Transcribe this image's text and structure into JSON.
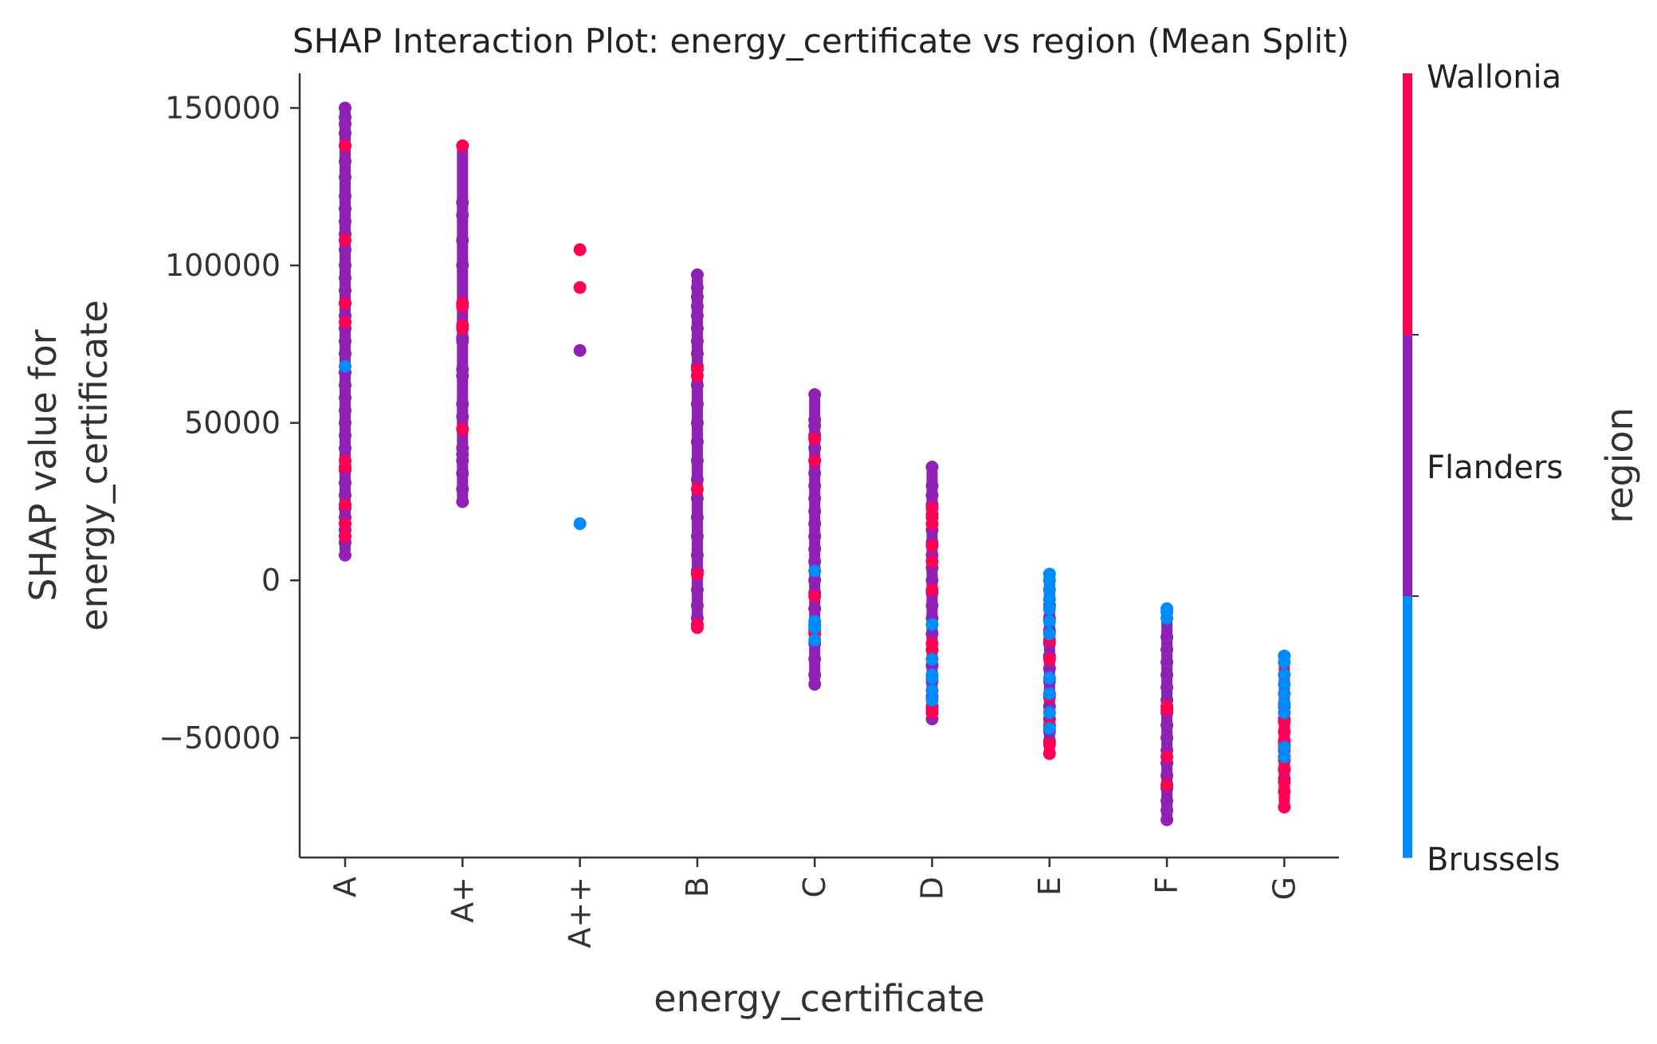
{
  "chart_data": {
    "type": "scatter",
    "title": "SHAP Interaction Plot: energy_certificate vs region (Mean Split)",
    "xlabel": "energy_certificate",
    "ylabel_lines": [
      "SHAP value for",
      "energy_certificate"
    ],
    "categories": [
      "A",
      "A+",
      "A++",
      "B",
      "C",
      "D",
      "E",
      "F",
      "G"
    ],
    "ylim": [
      -88000,
      161000
    ],
    "yticks": [
      150000,
      100000,
      50000,
      0,
      -50000
    ],
    "ytick_labels": [
      "150000",
      "100000",
      "50000",
      "0",
      "−50000"
    ],
    "grid": false,
    "legend": "colorbar-right",
    "colorbar": {
      "title": "region",
      "labels": [
        "Wallonia",
        "Flanders",
        "Brussels"
      ],
      "colors": {
        "Wallonia": "#ff0052",
        "Flanders": "#8f21b4",
        "Brussels": "#008bfb"
      }
    },
    "series": [
      {
        "category": "A",
        "min": 8000,
        "max": 150000,
        "dominant": "Flanders",
        "values": {
          "Flanders": [
            150000,
            147000,
            145000,
            142000,
            138000,
            133000,
            128000,
            122000,
            118000,
            114000,
            110000,
            105000,
            100000,
            96000,
            92000,
            88000,
            84000,
            80000,
            76000,
            72000,
            66000,
            62000,
            58000,
            54000,
            50000,
            46000,
            42000,
            35000,
            31000,
            27000,
            23000,
            20000,
            16000,
            12000,
            8000
          ],
          "Wallonia": [
            138000,
            108000,
            88000,
            82000,
            38000,
            36000,
            24000,
            18000,
            14000
          ],
          "Brussels": [
            68000
          ]
        }
      },
      {
        "category": "A+",
        "min": 25000,
        "max": 138000,
        "dominant": "Flanders",
        "values": {
          "Flanders": [
            120000,
            116000,
            108000,
            100000,
            77000,
            76000,
            67000,
            65000,
            56000,
            52000,
            42000,
            40000,
            38000,
            34000,
            29000,
            25000
          ],
          "Wallonia": [
            138000,
            88000,
            87000,
            81000,
            80000,
            48000
          ],
          "Brussels": []
        }
      },
      {
        "category": "A++",
        "min": 18000,
        "max": 105000,
        "dominant": "Wallonia",
        "values": {
          "Flanders": [
            73000
          ],
          "Wallonia": [
            105000,
            93000
          ],
          "Brussels": [
            18000
          ]
        }
      },
      {
        "category": "B",
        "min": -15000,
        "max": 97000,
        "dominant": "Flanders",
        "values": {
          "Flanders": [
            97000,
            93000,
            90000,
            87000,
            84000,
            80000,
            76000,
            72000,
            68000,
            62000,
            56000,
            50000,
            44000,
            38000,
            32000,
            26000,
            20000,
            14000,
            8000,
            3000,
            -3000,
            -8000,
            -12000
          ],
          "Wallonia": [
            67000,
            65000,
            29000,
            2000,
            -14000,
            -15000
          ],
          "Brussels": []
        }
      },
      {
        "category": "C",
        "min": -33000,
        "max": 59000,
        "dominant": "Flanders",
        "values": {
          "Flanders": [
            59000,
            51000,
            49000,
            46000,
            42000,
            38000,
            34000,
            30000,
            26000,
            22000,
            18000,
            14000,
            10000,
            6000,
            0,
            -4000,
            -9000,
            -14000,
            -20000,
            -25000,
            -30000,
            -33000
          ],
          "Wallonia": [
            45000,
            38000,
            -5000,
            -16000,
            -17000
          ],
          "Brussels": [
            3000,
            -13000,
            -15000,
            -19000
          ]
        }
      },
      {
        "category": "D",
        "min": -44000,
        "max": 36000,
        "dominant": "Flanders",
        "values": {
          "Flanders": [
            36000,
            30000,
            27000,
            24000,
            20000,
            16000,
            12000,
            8000,
            4000,
            0,
            -4000,
            -8000,
            -12000,
            -17000,
            -22000,
            -27000,
            -32000,
            -37000,
            -41000,
            -44000
          ],
          "Wallonia": [
            23000,
            21000,
            18000,
            11000,
            6000,
            -3000,
            -20000,
            -22000,
            -40000,
            -42000
          ],
          "Brussels": [
            -14000,
            -25000,
            -30000,
            -31000,
            -35000,
            -38000
          ]
        }
      },
      {
        "category": "E",
        "min": -55000,
        "max": 2000,
        "dominant": "Flanders",
        "values": {
          "Flanders": [
            -8000,
            -12000,
            -16000,
            -20000,
            -24000,
            -28000,
            -32000,
            -36000,
            -40000,
            -44000,
            -48000,
            -51000
          ],
          "Wallonia": [
            -19000,
            -25000,
            -37000,
            -46000,
            -52000,
            -55000
          ],
          "Brussels": [
            2000,
            0,
            -3000,
            -6000,
            -9000,
            -13000,
            -17000,
            -31000,
            -36000,
            -42000,
            -47000
          ]
        }
      },
      {
        "category": "F",
        "min": -76000,
        "max": -9000,
        "dominant": "Flanders",
        "values": {
          "Flanders": [
            -18000,
            -22000,
            -26000,
            -30000,
            -34000,
            -38000,
            -42000,
            -46000,
            -50000,
            -54000,
            -58000,
            -62000,
            -66000,
            -70000,
            -73000,
            -76000
          ],
          "Wallonia": [
            -40000,
            -41000,
            -56000,
            -65000
          ],
          "Brussels": [
            -9000,
            -10000,
            -12000
          ]
        }
      },
      {
        "category": "G",
        "min": -72000,
        "max": -24000,
        "dominant": "Wallonia",
        "values": {
          "Flanders": [
            -40000,
            -44000,
            -48000,
            -52000,
            -56000,
            -60000,
            -63000
          ],
          "Wallonia": [
            -45000,
            -48000,
            -51000,
            -54000,
            -57000,
            -60000,
            -64000,
            -67000,
            -72000
          ],
          "Brussels": [
            -24000,
            -26000,
            -30000,
            -33000,
            -36000,
            -39000,
            -42000,
            -53000,
            -56000
          ]
        }
      }
    ]
  }
}
